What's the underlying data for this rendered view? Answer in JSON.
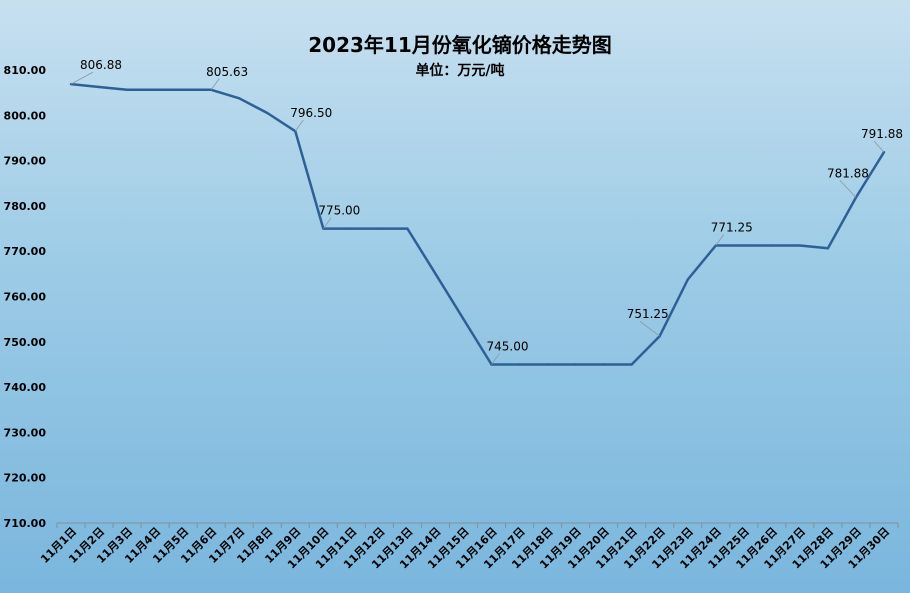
{
  "chart_data": {
    "type": "line",
    "title": "2023年11月份氧化镝价格走势图",
    "subtitle": "单位：万元/吨",
    "ylim": [
      710,
      810
    ],
    "yticks": [
      "710.00",
      "720.00",
      "730.00",
      "740.00",
      "750.00",
      "760.00",
      "770.00",
      "780.00",
      "790.00",
      "800.00",
      "810.00"
    ],
    "categories": [
      "11月1日",
      "11月2日",
      "11月3日",
      "11月4日",
      "11月5日",
      "11月6日",
      "11月7日",
      "11月8日",
      "11月9日",
      "11月10日",
      "11月11日",
      "11月12日",
      "11月13日",
      "11月14日",
      "11月15日",
      "11月16日",
      "11月17日",
      "11月18日",
      "11月19日",
      "11月20日",
      "11月21日",
      "11月22日",
      "11月23日",
      "11月24日",
      "11月25日",
      "11月26日",
      "11月27日",
      "11月28日",
      "11月29日",
      "11月30日"
    ],
    "series": [
      {
        "values": [
          806.88,
          806.25,
          805.63,
          805.63,
          805.63,
          805.63,
          803.75,
          800.5,
          796.5,
          775.0,
          775.0,
          775.0,
          775.0,
          765.0,
          755.0,
          745.0,
          745.0,
          745.0,
          745.0,
          745.0,
          745.0,
          751.25,
          763.75,
          771.25,
          771.25,
          771.25,
          771.25,
          770.63,
          781.88,
          791.88
        ],
        "color": "#2e5f95"
      }
    ],
    "data_labels": [
      {
        "index": 0,
        "text": "806.88"
      },
      {
        "index": 5,
        "text": "805.63"
      },
      {
        "index": 8,
        "text": "796.50"
      },
      {
        "index": 9,
        "text": "775.00"
      },
      {
        "index": 15,
        "text": "745.00"
      },
      {
        "index": 21,
        "text": "751.25"
      },
      {
        "index": 23,
        "text": "771.25"
      },
      {
        "index": 28,
        "text": "781.88"
      },
      {
        "index": 29,
        "text": "791.88"
      }
    ],
    "grid": false,
    "legend": "none"
  }
}
